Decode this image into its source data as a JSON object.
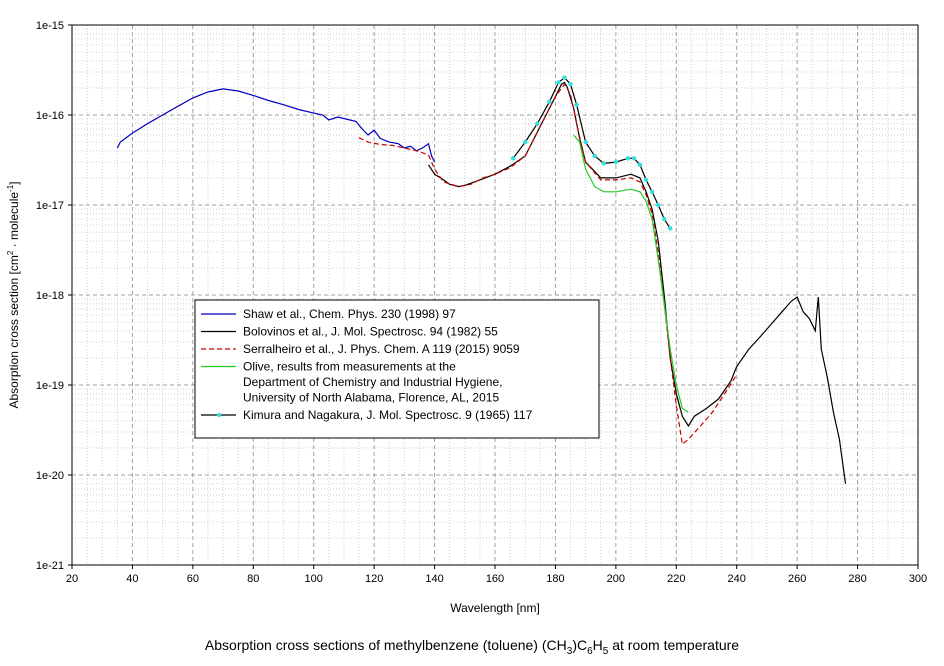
{
  "caption": {
    "text_before": "Absorption cross sections of methylbenzene (toluene) (CH",
    "sub1": "3",
    "text_mid": ")C",
    "sub2": "6",
    "text_mid2": "H",
    "sub3": "5",
    "text_after": " at room temperature"
  },
  "colors": {
    "shaw": "#0000c0",
    "bolovinos": "#000000",
    "serralheiro": "#cc0000",
    "olive": "#22cc22",
    "kimura_line": "#000000",
    "kimura_marker": "#33dddd",
    "grid_major": "#a0a0a0",
    "grid_minor": "#d0d0d0"
  },
  "chart_data": {
    "type": "line",
    "xlabel": "Wavelength [nm]",
    "ylabel_parts": [
      "Absorption cross section [cm",
      "2",
      " · molecule",
      "-1",
      "]"
    ],
    "xlim": [
      20,
      300
    ],
    "ylim_log10": [
      -21,
      -15
    ],
    "x_ticks": [
      20,
      40,
      60,
      80,
      100,
      120,
      140,
      160,
      180,
      200,
      220,
      240,
      260,
      280,
      300
    ],
    "y_tick_labels": [
      "1e-21",
      "1e-20",
      "1e-19",
      "1e-18",
      "1e-17",
      "1e-16",
      "1e-15"
    ],
    "legend": [
      {
        "key": "shaw",
        "lines": [
          "Shaw et al., Chem. Phys. 230 (1998) 97"
        ]
      },
      {
        "key": "bolovinos",
        "lines": [
          "Bolovinos et al., J. Mol. Spectrosc. 94 (1982) 55"
        ]
      },
      {
        "key": "serralheiro",
        "lines": [
          "Serralheiro et al., J. Phys. Chem. A 119 (2015) 9059"
        ]
      },
      {
        "key": "olive",
        "lines": [
          "Olive, results from measurements at the",
          "Department of Chemistry and Industrial Hygiene,",
          "University of North Alabama, Florence, AL, 2015"
        ]
      },
      {
        "key": "kimura",
        "lines": [
          "Kimura and Nagakura, J. Mol. Spectrosc. 9 (1965) 117"
        ]
      }
    ],
    "series": [
      {
        "key": "shaw",
        "name": "Shaw et al.",
        "dash": "",
        "points": [
          [
            35,
            4.3e-17
          ],
          [
            36,
            5e-17
          ],
          [
            40,
            6.3e-17
          ],
          [
            45,
            8e-17
          ],
          [
            50,
            1e-16
          ],
          [
            55,
            1.25e-16
          ],
          [
            60,
            1.55e-16
          ],
          [
            65,
            1.8e-16
          ],
          [
            70,
            1.95e-16
          ],
          [
            75,
            1.85e-16
          ],
          [
            80,
            1.65e-16
          ],
          [
            85,
            1.45e-16
          ],
          [
            90,
            1.3e-16
          ],
          [
            95,
            1.15e-16
          ],
          [
            100,
            1.05e-16
          ],
          [
            103,
            1e-16
          ],
          [
            105,
            8.8e-17
          ],
          [
            108,
            9.5e-17
          ],
          [
            112,
            8.8e-17
          ],
          [
            114,
            8.5e-17
          ],
          [
            116,
            7e-17
          ],
          [
            118,
            6e-17
          ],
          [
            120,
            6.8e-17
          ],
          [
            122,
            5.5e-17
          ],
          [
            125,
            5e-17
          ],
          [
            128,
            4.8e-17
          ],
          [
            130,
            4.3e-17
          ],
          [
            132,
            4.5e-17
          ],
          [
            134,
            4e-17
          ],
          [
            136,
            4.3e-17
          ],
          [
            138,
            4.8e-17
          ],
          [
            139,
            3.5e-17
          ],
          [
            140,
            3e-17
          ]
        ]
      },
      {
        "key": "bolovinos",
        "name": "Bolovinos et al.",
        "dash": "",
        "points": [
          [
            138,
            2.8e-17
          ],
          [
            140,
            2.2e-17
          ],
          [
            142,
            2e-17
          ],
          [
            145,
            1.7e-17
          ],
          [
            148,
            1.6e-17
          ],
          [
            150,
            1.65e-17
          ],
          [
            155,
            1.9e-17
          ],
          [
            160,
            2.2e-17
          ],
          [
            165,
            2.7e-17
          ],
          [
            170,
            3.5e-17
          ],
          [
            175,
            7.5e-17
          ],
          [
            180,
            1.6e-16
          ],
          [
            182,
            2.2e-16
          ],
          [
            183,
            2.3e-16
          ],
          [
            184,
            2e-16
          ],
          [
            186,
            1.2e-16
          ],
          [
            188,
            5.5e-17
          ],
          [
            190,
            3e-17
          ],
          [
            195,
            2e-17
          ],
          [
            200,
            2e-17
          ],
          [
            205,
            2.2e-17
          ],
          [
            208,
            2e-17
          ],
          [
            210,
            1.4e-17
          ],
          [
            212,
            9e-18
          ],
          [
            214,
            4e-18
          ],
          [
            216,
            1e-18
          ],
          [
            218,
            2e-19
          ],
          [
            220,
            8e-20
          ],
          [
            222,
            4.5e-20
          ],
          [
            224,
            3.5e-20
          ],
          [
            226,
            4.5e-20
          ],
          [
            230,
            5.5e-20
          ],
          [
            234,
            7e-20
          ],
          [
            238,
            1.1e-19
          ],
          [
            240,
            1.6e-19
          ],
          [
            244,
            2.5e-19
          ],
          [
            248,
            3.5e-19
          ],
          [
            252,
            5e-19
          ],
          [
            255,
            6.5e-19
          ],
          [
            258,
            8.5e-19
          ],
          [
            260,
            9.5e-19
          ],
          [
            262,
            6.5e-19
          ],
          [
            264,
            5.5e-19
          ],
          [
            266,
            4e-19
          ],
          [
            267,
            9.5e-19
          ],
          [
            268,
            2.5e-19
          ],
          [
            270,
            1.2e-19
          ],
          [
            272,
            5e-20
          ],
          [
            274,
            2.5e-20
          ],
          [
            276,
            8e-21
          ]
        ]
      },
      {
        "key": "serralheiro",
        "name": "Serralheiro et al.",
        "dash": "5,3",
        "points": [
          [
            115,
            5.6e-17
          ],
          [
            118,
            5e-17
          ],
          [
            122,
            4.7e-17
          ],
          [
            126,
            4.6e-17
          ],
          [
            130,
            4.3e-17
          ],
          [
            134,
            4e-17
          ],
          [
            138,
            3.6e-17
          ],
          [
            140,
            2.5e-17
          ],
          [
            143,
            1.8e-17
          ],
          [
            148,
            1.6e-17
          ],
          [
            152,
            1.7e-17
          ],
          [
            156,
            2e-17
          ],
          [
            160,
            2.2e-17
          ],
          [
            165,
            2.6e-17
          ],
          [
            170,
            3.5e-17
          ],
          [
            175,
            7.5e-17
          ],
          [
            180,
            1.6e-16
          ],
          [
            183,
            2.2e-16
          ],
          [
            185,
            1.7e-16
          ],
          [
            187,
            8e-17
          ],
          [
            190,
            3e-17
          ],
          [
            195,
            1.9e-17
          ],
          [
            200,
            1.9e-17
          ],
          [
            205,
            2e-17
          ],
          [
            208,
            1.8e-17
          ],
          [
            210,
            1.3e-17
          ],
          [
            212,
            8e-18
          ],
          [
            214,
            3e-18
          ],
          [
            216,
            8e-19
          ],
          [
            218,
            2e-19
          ],
          [
            220,
            6e-20
          ],
          [
            222,
            2.2e-20
          ],
          [
            224,
            2.5e-20
          ],
          [
            228,
            3.5e-20
          ],
          [
            232,
            5e-20
          ],
          [
            236,
            8e-20
          ],
          [
            240,
            1.3e-19
          ]
        ]
      },
      {
        "key": "olive",
        "name": "Olive",
        "dash": "",
        "points": [
          [
            186,
            6e-17
          ],
          [
            188,
            5e-17
          ],
          [
            190,
            2.5e-17
          ],
          [
            193,
            1.6e-17
          ],
          [
            196,
            1.4e-17
          ],
          [
            200,
            1.4e-17
          ],
          [
            205,
            1.5e-17
          ],
          [
            208,
            1.4e-17
          ],
          [
            210,
            1.1e-17
          ],
          [
            212,
            7e-18
          ],
          [
            214,
            2.5e-18
          ],
          [
            216,
            8e-19
          ],
          [
            218,
            2.5e-19
          ],
          [
            220,
            1e-19
          ],
          [
            222,
            5.5e-20
          ],
          [
            224,
            5e-20
          ]
        ]
      },
      {
        "key": "kimura",
        "name": "Kimura and Nagakura",
        "dash": "",
        "markers": true,
        "points": [
          [
            166,
            3.3e-17
          ],
          [
            170,
            5e-17
          ],
          [
            174,
            8e-17
          ],
          [
            178,
            1.4e-16
          ],
          [
            181,
            2.3e-16
          ],
          [
            183,
            2.6e-16
          ],
          [
            185,
            2.2e-16
          ],
          [
            187,
            1.3e-16
          ],
          [
            190,
            5e-17
          ],
          [
            193,
            3.5e-17
          ],
          [
            196,
            2.9e-17
          ],
          [
            200,
            3e-17
          ],
          [
            204,
            3.3e-17
          ],
          [
            206,
            3.3e-17
          ],
          [
            208,
            2.8e-17
          ],
          [
            210,
            1.9e-17
          ],
          [
            212,
            1.4e-17
          ],
          [
            214,
            1e-17
          ],
          [
            216,
            7e-18
          ],
          [
            218,
            5.5e-18
          ]
        ]
      }
    ]
  }
}
